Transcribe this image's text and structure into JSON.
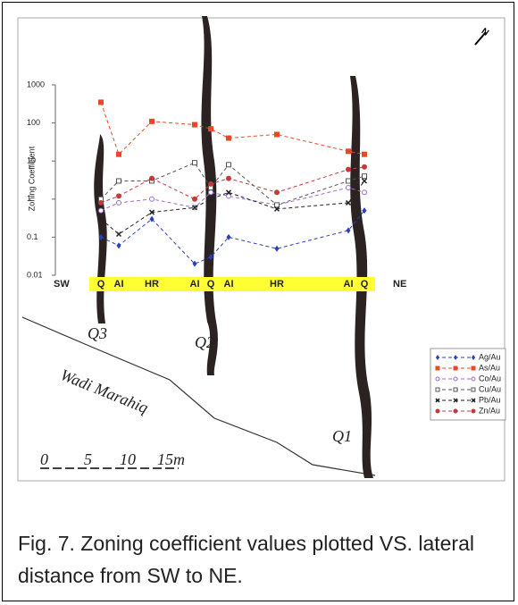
{
  "chart_data": {
    "type": "line",
    "y_label": "Zoning Coefficient",
    "log_scale": true,
    "ylim": [
      0.01,
      1000
    ],
    "yticks": [
      0.01,
      0.1,
      1,
      10,
      100,
      1000
    ],
    "categories": [
      "Q",
      "AI",
      "HR",
      "AI",
      "Q",
      "AI",
      "HR",
      "AI",
      "Q"
    ],
    "series": [
      {
        "name": "Ag/Au",
        "color": "#2a3fc0",
        "marker": "diamond",
        "values": [
          0.1,
          0.06,
          0.3,
          0.02,
          0.03,
          0.1,
          0.05,
          0.15,
          0.5
        ]
      },
      {
        "name": "As/Au",
        "color": "#e8482a",
        "marker": "square",
        "values": [
          350,
          15,
          110,
          90,
          70,
          40,
          50,
          18,
          15
        ]
      },
      {
        "name": "Co/Au",
        "color": "#9a6ccf",
        "marker": "open-circle",
        "values": [
          0.5,
          0.8,
          1,
          0.6,
          1.5,
          1.2,
          0.7,
          2,
          1.5
        ]
      },
      {
        "name": "Cu/Au",
        "color": "#555555",
        "marker": "open-square",
        "values": [
          1,
          3,
          3,
          9,
          2,
          8,
          0.7,
          3,
          4
        ]
      },
      {
        "name": "Pb/Au",
        "color": "#222222",
        "marker": "cross",
        "values": [
          0.3,
          0.12,
          0.45,
          0.6,
          1,
          1.5,
          0.55,
          0.8,
          3
        ]
      },
      {
        "name": "Zn/Au",
        "color": "#c43a3a",
        "marker": "circle",
        "values": [
          0.8,
          1.2,
          3.5,
          1,
          2.5,
          3.5,
          1.5,
          6,
          7
        ]
      }
    ],
    "start_label": "SW",
    "end_label": "NE",
    "veins": [
      "Q3",
      "Q2",
      "Q1"
    ],
    "wadi_label": "Wadi Marahiq",
    "scale_labels": [
      "0",
      "5",
      "10",
      "15m"
    ],
    "north_label": "N"
  },
  "caption": "Fig. 7. Zoning coefficient values plotted VS. lateral distance from SW to NE."
}
